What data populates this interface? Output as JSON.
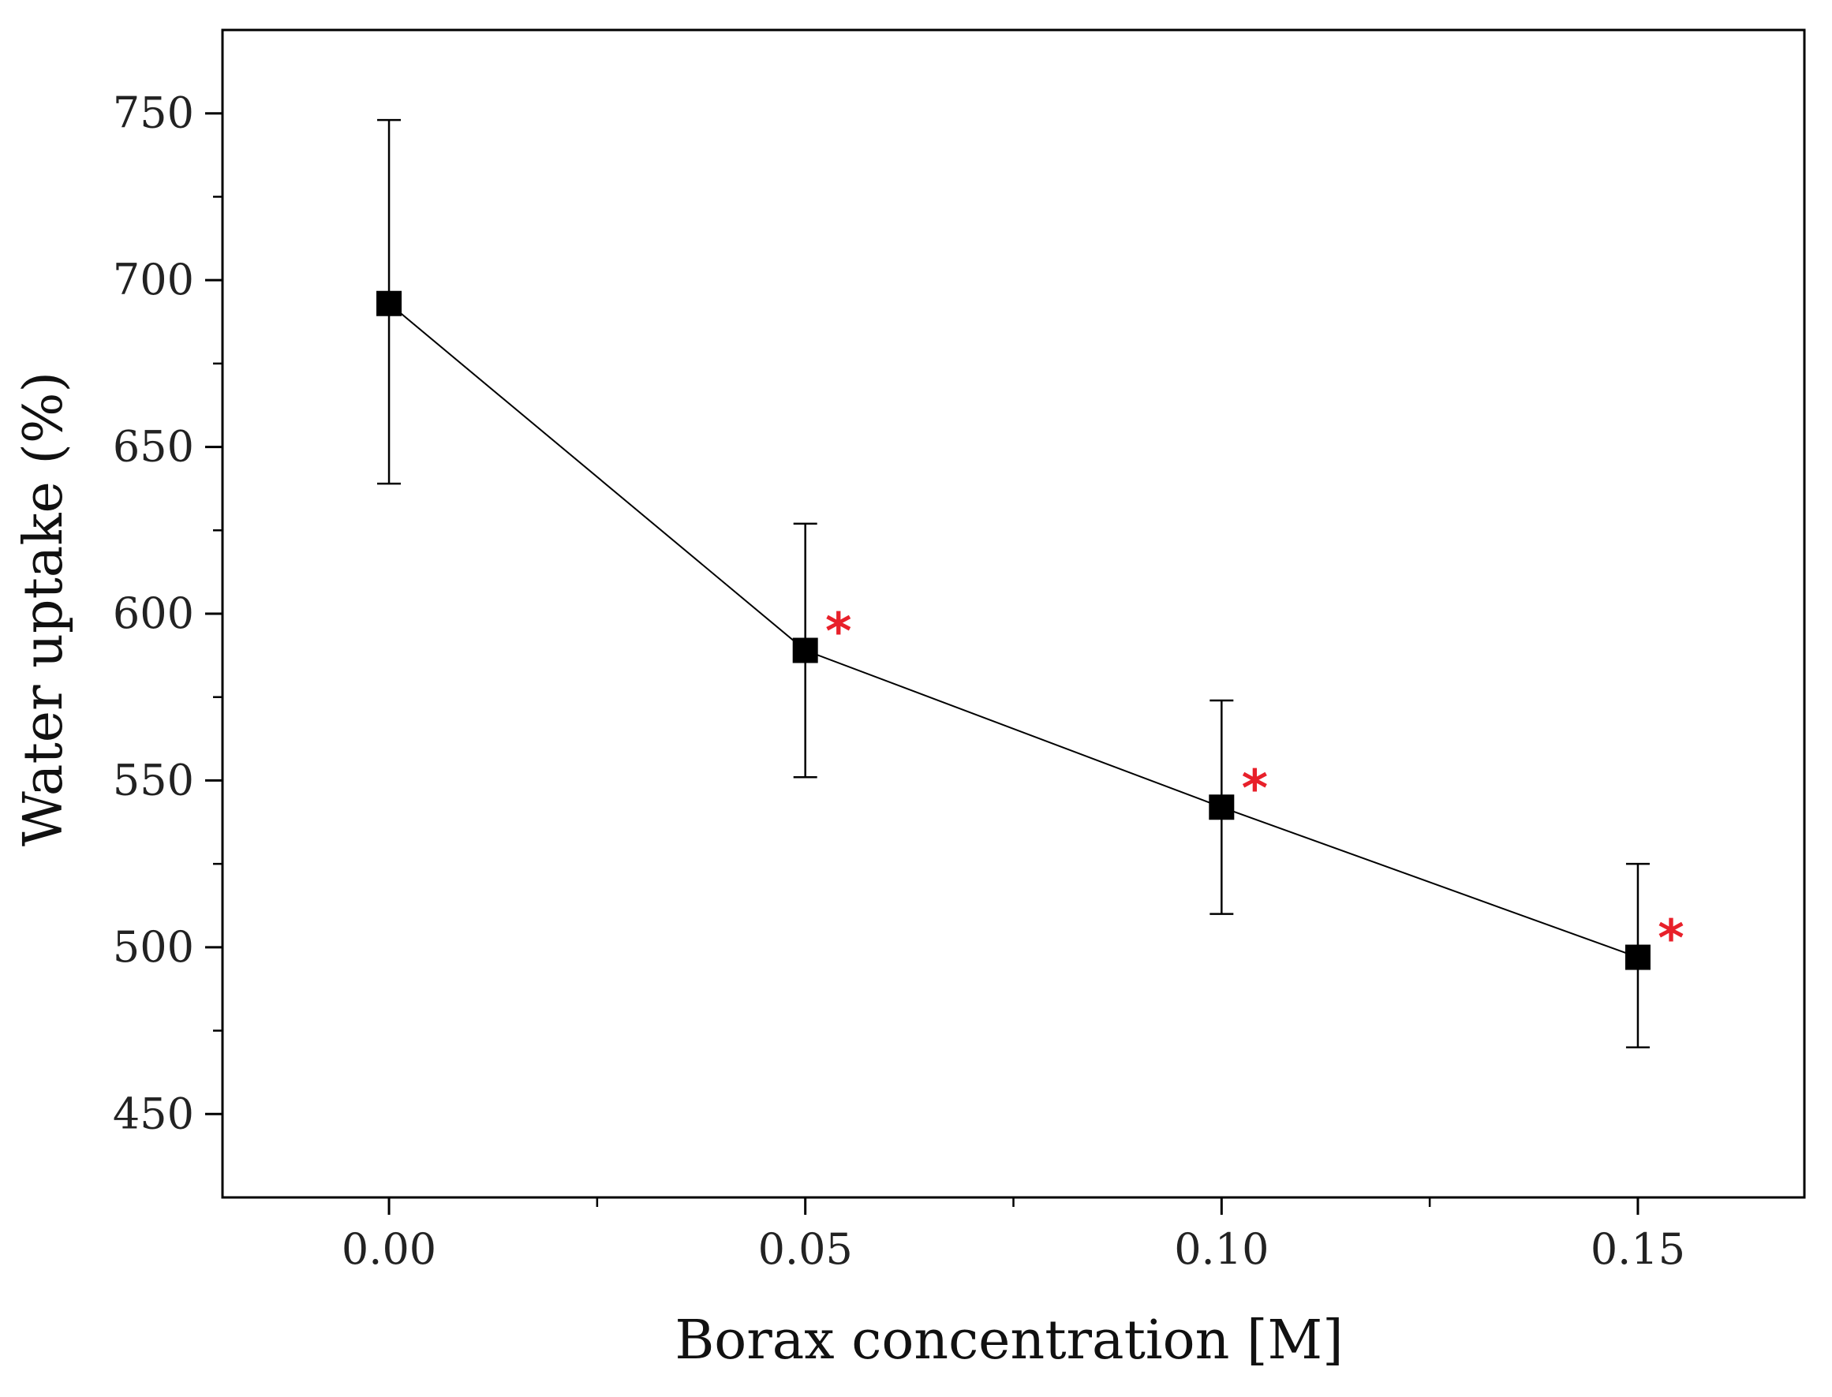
{
  "chart_data": {
    "type": "line",
    "title": "",
    "xlabel": "Borax concentration [M]",
    "ylabel": "Water uptake (%)",
    "xlim": [
      -0.02,
      0.17
    ],
    "ylim": [
      425,
      775
    ],
    "x_ticks": [
      0.0,
      0.05,
      0.1,
      0.15
    ],
    "x_tick_labels": [
      "0.00",
      "0.05",
      "0.10",
      "0.15"
    ],
    "y_ticks": [
      450,
      500,
      550,
      600,
      650,
      700,
      750
    ],
    "y_tick_labels": [
      "450",
      "500",
      "550",
      "600",
      "650",
      "700",
      "750"
    ],
    "y_minor_ticks": [
      475,
      525,
      575,
      625,
      675,
      725
    ],
    "grid": false,
    "series": [
      {
        "name": "Water uptake",
        "x": [
          0.0,
          0.05,
          0.1,
          0.15
        ],
        "y": [
          693,
          589,
          542,
          497
        ],
        "error_low": [
          639,
          551,
          510,
          470
        ],
        "error_high": [
          748,
          627,
          574,
          525
        ],
        "marker": "square",
        "color": "#000000"
      }
    ],
    "annotations": [
      {
        "text": "*",
        "x": 0.05,
        "y": 589,
        "color": "#e8202a"
      },
      {
        "text": "*",
        "x": 0.1,
        "y": 542,
        "color": "#e8202a"
      },
      {
        "text": "*",
        "x": 0.15,
        "y": 497,
        "color": "#e8202a"
      }
    ]
  }
}
